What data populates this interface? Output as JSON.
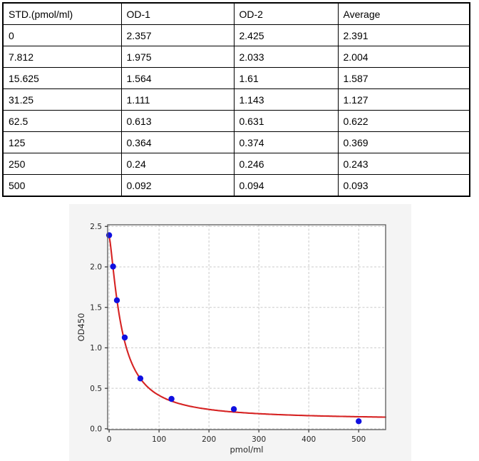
{
  "table": {
    "columns": [
      "STD.(pmol/ml)",
      "OD-1",
      "OD-2",
      "Average"
    ],
    "rows": [
      [
        "0",
        "2.357",
        "2.425",
        "2.391"
      ],
      [
        "7.812",
        "1.975",
        "2.033",
        "2.004"
      ],
      [
        "15.625",
        "1.564",
        "1.61",
        "1.587"
      ],
      [
        "31.25",
        "1.111",
        "1.143",
        "1.127"
      ],
      [
        "62.5",
        "0.613",
        "0.631",
        "0.622"
      ],
      [
        "125",
        "0.364",
        "0.374",
        "0.369"
      ],
      [
        "250",
        "0.24",
        "0.246",
        "0.243"
      ],
      [
        "500",
        "0.092",
        "0.094",
        "0.093"
      ]
    ]
  },
  "chart_data": {
    "type": "scatter",
    "title": "",
    "xlabel": "pmol/ml",
    "ylabel": "OD450",
    "x": [
      0,
      7.812,
      15.625,
      31.25,
      62.5,
      125,
      250,
      500
    ],
    "y": [
      2.391,
      2.004,
      1.587,
      1.127,
      0.622,
      0.369,
      0.243,
      0.093
    ],
    "series": [
      {
        "name": "standard-points",
        "type": "scatter"
      },
      {
        "name": "fitted-curve",
        "type": "line"
      }
    ],
    "xticks": [
      0,
      100,
      200,
      300,
      400,
      500
    ],
    "yticks": [
      0.0,
      0.5,
      1.0,
      1.5,
      2.0,
      2.5
    ],
    "xlim": [
      -3,
      554
    ],
    "ylim": [
      -0.01,
      2.52
    ],
    "grid": true,
    "legend": "none",
    "fit": {
      "model": "4PL",
      "A": 2.38,
      "B": 1.35,
      "C": 25,
      "D": 0.11
    },
    "colors": {
      "point": "#1010e0",
      "curve": "#d62323",
      "panel_bg": "#f4f4f4",
      "plot_bg": "#ffffff",
      "grid": "#c9c9c9",
      "spine": "#5a5a5a",
      "tick": "#333333",
      "tick_label": "#262626"
    }
  }
}
